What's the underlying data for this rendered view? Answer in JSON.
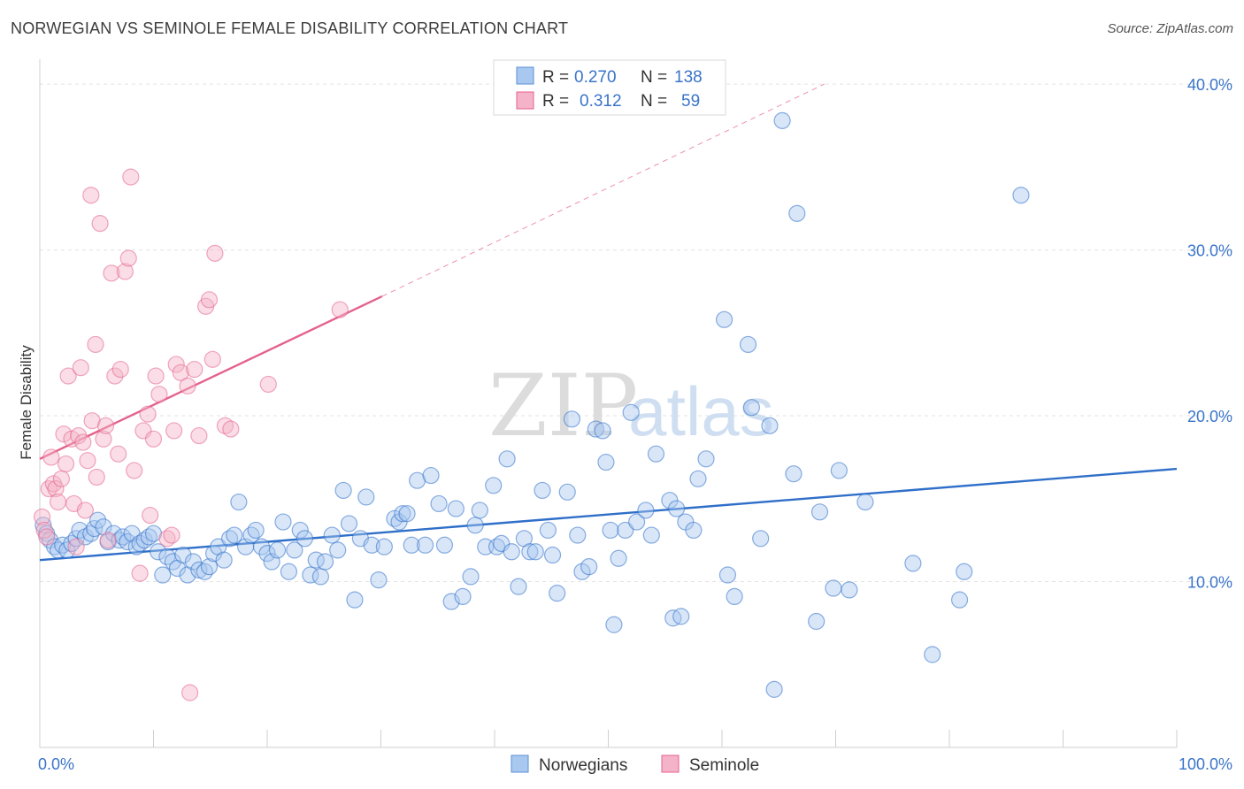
{
  "title": "NORWEGIAN VS SEMINOLE FEMALE DISABILITY CORRELATION CHART",
  "source": "Source: ZipAtlas.com",
  "watermark": {
    "zip": "ZIP",
    "atlas": "atlas"
  },
  "colors": {
    "blue": "#2f6fc9",
    "blue_fill": "#a9c8f0",
    "pink": "#e4628d",
    "pink_fill": "#f4b3c8",
    "tick": "#3a74c9",
    "grid": "#e3e3e3"
  },
  "chart_data": {
    "type": "scatter",
    "title": "NORWEGIAN VS SEMINOLE FEMALE DISABILITY CORRELATION CHART",
    "xlabel": "",
    "ylabel": "Female Disability",
    "xlim": [
      0,
      100
    ],
    "ylim": [
      0,
      41.5
    ],
    "x_ticks": [
      0,
      10,
      20,
      30,
      40,
      50,
      60,
      70,
      80,
      90,
      100
    ],
    "x_tick_labels": [
      {
        "value": 0,
        "label": "0.0%"
      },
      {
        "value": 100,
        "label": "100.0%"
      }
    ],
    "y_tick_labels": [
      {
        "value": 10,
        "label": "10.0%"
      },
      {
        "value": 20,
        "label": "20.0%"
      },
      {
        "value": 30,
        "label": "30.0%"
      },
      {
        "value": 40,
        "label": "40.0%"
      }
    ],
    "grid": true,
    "legend_position": "bottom-center",
    "legend": [
      {
        "name": "Norwegians",
        "color": "#a9c8f0"
      },
      {
        "name": "Seminole",
        "color": "#f4b3c8"
      }
    ],
    "stats": [
      {
        "r_label": "R =",
        "r": "0.270",
        "n_label": "N =",
        "n": "138"
      },
      {
        "r_label": "R =",
        "r": "0.312",
        "n_label": "N =",
        "n": "59"
      }
    ],
    "series": [
      {
        "name": "Norwegians",
        "color": "#a9c8f0",
        "trend": {
          "x": [
            0,
            100
          ],
          "y": [
            11.3,
            16.8
          ]
        },
        "points": [
          [
            0.3,
            13.4
          ],
          [
            0.6,
            12.9
          ],
          [
            0.9,
            12.5
          ],
          [
            1.3,
            12.1
          ],
          [
            1.6,
            11.9
          ],
          [
            2,
            12.2
          ],
          [
            2.4,
            11.9
          ],
          [
            2.8,
            12.3
          ],
          [
            3.2,
            12.6
          ],
          [
            3.5,
            13.1
          ],
          [
            4,
            12.7
          ],
          [
            4.5,
            12.9
          ],
          [
            4.8,
            13.2
          ],
          [
            5.1,
            13.7
          ],
          [
            5.6,
            13.3
          ],
          [
            6,
            12.4
          ],
          [
            6.5,
            12.9
          ],
          [
            7,
            12.5
          ],
          [
            7.3,
            12.7
          ],
          [
            7.7,
            12.4
          ],
          [
            8.1,
            12.9
          ],
          [
            8.5,
            12.1
          ],
          [
            8.8,
            12.3
          ],
          [
            9.2,
            12.5
          ],
          [
            9.6,
            12.7
          ],
          [
            10,
            12.9
          ],
          [
            10.4,
            11.8
          ],
          [
            10.8,
            10.4
          ],
          [
            11.2,
            11.5
          ],
          [
            11.7,
            11.2
          ],
          [
            12.1,
            10.8
          ],
          [
            12.6,
            11.6
          ],
          [
            13,
            10.4
          ],
          [
            13.5,
            11.2
          ],
          [
            14,
            10.7
          ],
          [
            14.5,
            10.6
          ],
          [
            14.9,
            10.9
          ],
          [
            15.3,
            11.7
          ],
          [
            15.7,
            12.1
          ],
          [
            16.2,
            11.3
          ],
          [
            16.7,
            12.6
          ],
          [
            17.1,
            12.8
          ],
          [
            17.5,
            14.8
          ],
          [
            18.1,
            12.1
          ],
          [
            18.6,
            12.8
          ],
          [
            19,
            13.1
          ],
          [
            19.5,
            12.1
          ],
          [
            20,
            11.7
          ],
          [
            20.4,
            11.2
          ],
          [
            20.9,
            11.9
          ],
          [
            21.4,
            13.6
          ],
          [
            21.9,
            10.6
          ],
          [
            22.4,
            11.9
          ],
          [
            22.9,
            13.1
          ],
          [
            23.3,
            12.6
          ],
          [
            23.8,
            10.4
          ],
          [
            24.3,
            11.3
          ],
          [
            24.7,
            10.3
          ],
          [
            25.1,
            11.2
          ],
          [
            25.7,
            12.8
          ],
          [
            26.2,
            11.9
          ],
          [
            26.7,
            15.5
          ],
          [
            27.2,
            13.5
          ],
          [
            27.7,
            8.9
          ],
          [
            28.2,
            12.6
          ],
          [
            28.7,
            15.1
          ],
          [
            29.2,
            12.2
          ],
          [
            29.8,
            10.1
          ],
          [
            30.3,
            12.1
          ],
          [
            31.2,
            13.8
          ],
          [
            31.6,
            13.6
          ],
          [
            31.9,
            14.1
          ],
          [
            32.3,
            14.1
          ],
          [
            32.7,
            12.2
          ],
          [
            33.2,
            16.1
          ],
          [
            33.9,
            12.2
          ],
          [
            34.4,
            16.4
          ],
          [
            35.1,
            14.7
          ],
          [
            35.6,
            12.2
          ],
          [
            36.2,
            8.8
          ],
          [
            36.6,
            14.4
          ],
          [
            37.2,
            9.1
          ],
          [
            37.9,
            10.3
          ],
          [
            38.3,
            13.4
          ],
          [
            38.7,
            14.3
          ],
          [
            39.2,
            12.1
          ],
          [
            39.9,
            15.8
          ],
          [
            40.2,
            12.1
          ],
          [
            40.6,
            12.3
          ],
          [
            41.1,
            17.4
          ],
          [
            41.5,
            11.8
          ],
          [
            42.1,
            9.7
          ],
          [
            42.6,
            12.6
          ],
          [
            43.1,
            11.8
          ],
          [
            43.6,
            11.8
          ],
          [
            44.2,
            15.5
          ],
          [
            44.7,
            13.1
          ],
          [
            45.1,
            11.6
          ],
          [
            45.5,
            9.3
          ],
          [
            46.4,
            15.4
          ],
          [
            46.8,
            19.8
          ],
          [
            47.3,
            12.8
          ],
          [
            47.7,
            10.6
          ],
          [
            48.3,
            10.9
          ],
          [
            48.9,
            19.2
          ],
          [
            49.5,
            19.1
          ],
          [
            49.8,
            17.2
          ],
          [
            50.2,
            13.1
          ],
          [
            50.5,
            7.4
          ],
          [
            50.9,
            11.4
          ],
          [
            51.5,
            13.1
          ],
          [
            52,
            20.2
          ],
          [
            52.5,
            13.6
          ],
          [
            53.3,
            14.3
          ],
          [
            53.8,
            12.8
          ],
          [
            54.2,
            17.7
          ],
          [
            55.4,
            14.9
          ],
          [
            55.7,
            7.8
          ],
          [
            56,
            14.4
          ],
          [
            56.4,
            7.9
          ],
          [
            56.8,
            13.6
          ],
          [
            57.5,
            13.1
          ],
          [
            57.9,
            16.2
          ],
          [
            58.6,
            17.4
          ],
          [
            60.2,
            25.8
          ],
          [
            60.5,
            10.4
          ],
          [
            61.1,
            9.1
          ],
          [
            62.3,
            24.3
          ],
          [
            62.6,
            20.5
          ],
          [
            63.4,
            12.6
          ],
          [
            64.2,
            19.4
          ],
          [
            64.6,
            3.5
          ],
          [
            65.3,
            37.8
          ],
          [
            66.3,
            16.5
          ],
          [
            66.6,
            32.2
          ],
          [
            68.3,
            7.6
          ],
          [
            68.6,
            14.2
          ],
          [
            69.8,
            9.6
          ],
          [
            70.3,
            16.7
          ],
          [
            71.2,
            9.5
          ],
          [
            72.6,
            14.8
          ],
          [
            76.8,
            11.1
          ],
          [
            78.5,
            5.6
          ],
          [
            80.9,
            8.9
          ],
          [
            81.3,
            10.6
          ],
          [
            86.3,
            33.3
          ]
        ]
      },
      {
        "name": "Seminole",
        "color": "#f4b3c8",
        "trend": {
          "x": [
            0,
            30.1
          ],
          "y": [
            17.4,
            27.2
          ]
        },
        "trend_extension": {
          "x": [
            30.1,
            69
          ],
          "y": [
            27.2,
            40.0
          ]
        },
        "points": [
          [
            0.2,
            13.9
          ],
          [
            0.4,
            13.1
          ],
          [
            0.6,
            12.7
          ],
          [
            0.8,
            15.6
          ],
          [
            1,
            17.5
          ],
          [
            1.2,
            15.9
          ],
          [
            1.4,
            15.6
          ],
          [
            1.6,
            14.8
          ],
          [
            1.9,
            16.2
          ],
          [
            2.1,
            18.9
          ],
          [
            2.3,
            17.1
          ],
          [
            2.5,
            22.4
          ],
          [
            2.8,
            18.6
          ],
          [
            3,
            14.7
          ],
          [
            3.2,
            12.1
          ],
          [
            3.4,
            18.8
          ],
          [
            3.6,
            22.9
          ],
          [
            3.8,
            18.4
          ],
          [
            4,
            14.3
          ],
          [
            4.2,
            17.3
          ],
          [
            4.5,
            33.3
          ],
          [
            4.6,
            19.7
          ],
          [
            4.9,
            24.3
          ],
          [
            5,
            16.3
          ],
          [
            5.3,
            31.6
          ],
          [
            5.6,
            18.6
          ],
          [
            5.8,
            19.4
          ],
          [
            6,
            12.5
          ],
          [
            6.3,
            28.6
          ],
          [
            6.6,
            22.4
          ],
          [
            6.9,
            17.7
          ],
          [
            7.1,
            22.8
          ],
          [
            7.5,
            28.7
          ],
          [
            7.8,
            29.5
          ],
          [
            8,
            34.4
          ],
          [
            8.3,
            16.7
          ],
          [
            8.8,
            10.5
          ],
          [
            9.1,
            19.1
          ],
          [
            9.5,
            20.1
          ],
          [
            9.7,
            14
          ],
          [
            10,
            18.6
          ],
          [
            10.2,
            22.4
          ],
          [
            10.5,
            21.3
          ],
          [
            11.2,
            12.6
          ],
          [
            11.6,
            12.8
          ],
          [
            11.8,
            19.1
          ],
          [
            12,
            23.1
          ],
          [
            12.4,
            22.6
          ],
          [
            13,
            21.8
          ],
          [
            13.2,
            3.3
          ],
          [
            13.6,
            22.8
          ],
          [
            14,
            18.8
          ],
          [
            14.6,
            26.6
          ],
          [
            14.9,
            27
          ],
          [
            15.2,
            23.4
          ],
          [
            15.4,
            29.8
          ],
          [
            16.3,
            19.4
          ],
          [
            16.8,
            19.2
          ],
          [
            20.1,
            21.9
          ],
          [
            26.4,
            26.4
          ]
        ]
      }
    ]
  }
}
